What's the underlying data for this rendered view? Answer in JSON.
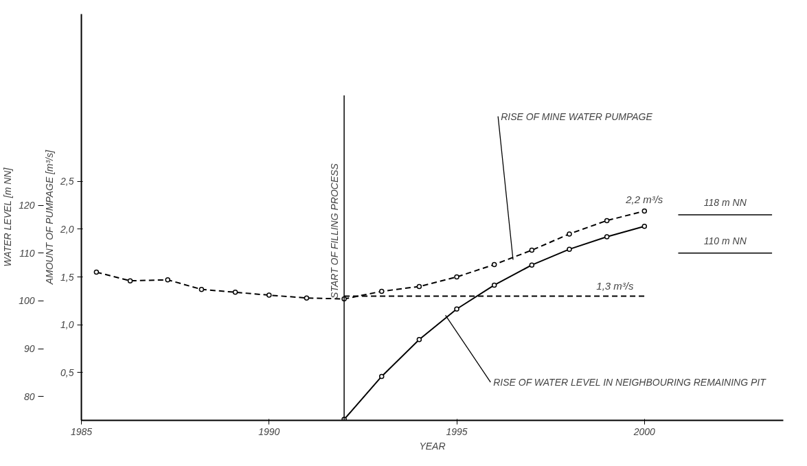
{
  "chart_data": {
    "type": "line",
    "xlabel": "YEAR",
    "ylabel": "WATER LEVEL [m NN]",
    "y2label": "AMOUNT OF PUMPAGE [m³/s]",
    "xlim": [
      1985,
      2003.7
    ],
    "xticks": [
      1985,
      1990,
      1995,
      2000
    ],
    "ylim": [
      75,
      160
    ],
    "yticks": [
      80,
      90,
      100,
      110,
      120
    ],
    "y2lim": [
      0,
      4.25
    ],
    "y2ticks": [
      {
        "value": 0.5,
        "label": "0,5"
      },
      {
        "value": 1.0,
        "label": "1,0"
      },
      {
        "value": 1.5,
        "label": "1,5"
      },
      {
        "value": 2.0,
        "label": "2,0"
      },
      {
        "value": 2.5,
        "label": "2,5"
      }
    ],
    "grid": false,
    "marker": "circle",
    "series": [
      {
        "color": "#000000",
        "axis": "y2",
        "line_style": "dashed",
        "x": [
          1985.4,
          1986.3,
          1987.3,
          1988.2,
          1989.1,
          1990.0,
          1991.0,
          1992.0,
          1993,
          1994,
          1995,
          1996,
          1997,
          1998,
          1999,
          2000
        ],
        "values": [
          1.55,
          1.46,
          1.47,
          1.37,
          1.34,
          1.31,
          1.28,
          1.27,
          1.35,
          1.4,
          1.5,
          1.63,
          1.78,
          1.95,
          2.09,
          2.19
        ]
      },
      {
        "color": "#000000",
        "line_style": "solid",
        "x": [
          1992,
          1993,
          1994,
          1995,
          1996,
          1997,
          1998,
          1999,
          2000
        ],
        "values": [
          75.2,
          84.2,
          91.9,
          98.3,
          103.3,
          107.5,
          110.8,
          113.4,
          115.6
        ]
      }
    ],
    "ref_lines": [
      {
        "axis": "x",
        "value": 1992,
        "label": "START OF FILLING PROCESS",
        "line_style": "solid"
      },
      {
        "axis": "y2",
        "value": 1.3,
        "label": "1,3 m³/s",
        "line_style": "dashed"
      },
      {
        "axis": "y",
        "value": 118,
        "label": "118 m NN",
        "line_style": "solid"
      },
      {
        "axis": "y",
        "value": 110,
        "label": "110 m NN",
        "line_style": "solid"
      }
    ],
    "annotations": [
      {
        "text": "RISE OF MINE WATER PUMPAGE",
        "x": 1996.5,
        "y": 108.6
      },
      {
        "text": "RISE OF WATER LEVEL IN NEIGHBOURING REMAINING PIT",
        "x": 1994.7,
        "y": 97
      },
      {
        "text": "2,2 m³/s",
        "x": 2000,
        "y": 118.8
      }
    ]
  }
}
